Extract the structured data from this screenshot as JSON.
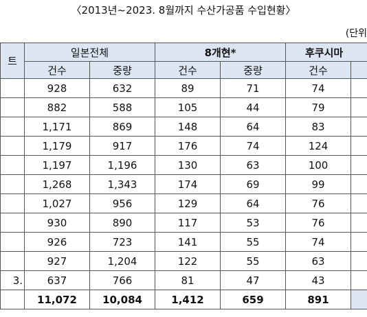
{
  "header": {
    "title": "〈2013년~2023. 8월까지 수산가공품 수입현황〉",
    "unit": "(단위"
  },
  "table": {
    "corner": "트",
    "groups": [
      "일본전체",
      "8개현*",
      "후쿠시마"
    ],
    "subheaders": [
      "건수",
      "중량",
      "건수",
      "중량",
      "건수"
    ],
    "row_labels": [
      null,
      null,
      null,
      null,
      null,
      null,
      null,
      null,
      null,
      null,
      "3.",
      null
    ],
    "rows": [
      [
        "928",
        "632",
        "89",
        "71",
        "74"
      ],
      [
        "882",
        "588",
        "105",
        "44",
        "79"
      ],
      [
        "1,171",
        "869",
        "148",
        "64",
        "83"
      ],
      [
        "1,179",
        "917",
        "176",
        "74",
        "124"
      ],
      [
        "1,197",
        "1,196",
        "130",
        "63",
        "100"
      ],
      [
        "1,268",
        "1,343",
        "174",
        "69",
        "99"
      ],
      [
        "1,027",
        "956",
        "129",
        "64",
        "76"
      ],
      [
        "930",
        "890",
        "117",
        "53",
        "76"
      ],
      [
        "926",
        "723",
        "141",
        "55",
        "74"
      ],
      [
        "927",
        "1,204",
        "122",
        "55",
        "63"
      ],
      [
        "637",
        "766",
        "81",
        "47",
        "43"
      ],
      [
        "11,072",
        "10,084",
        "1,412",
        "659",
        "891"
      ]
    ]
  }
}
